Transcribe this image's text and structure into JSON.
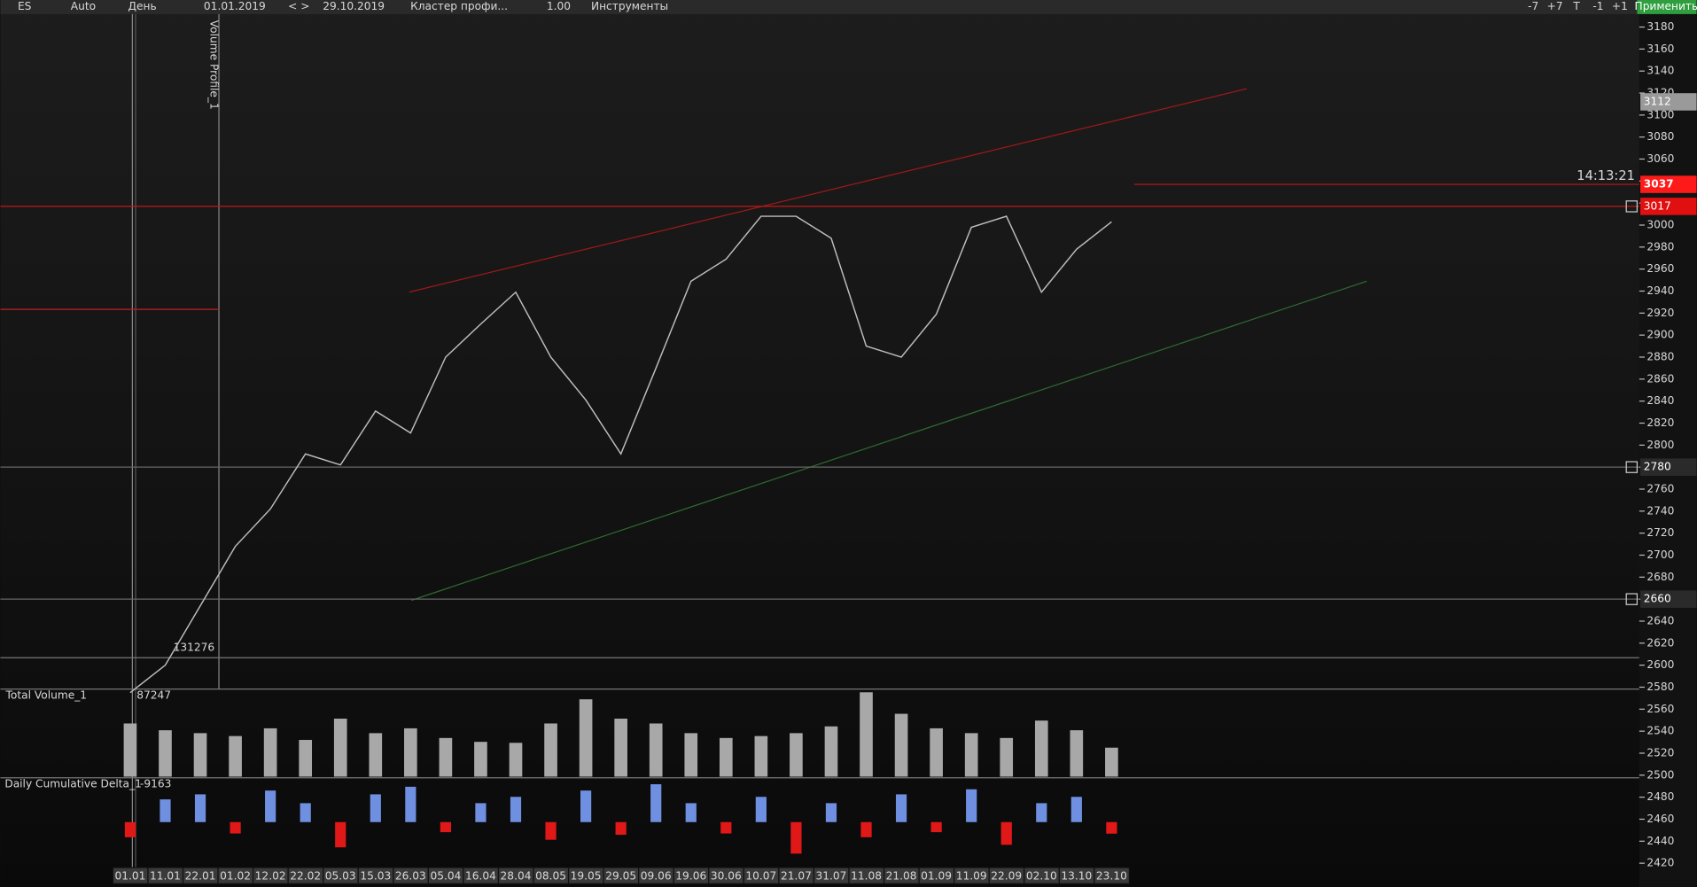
{
  "toolbar": {
    "symbol": "ES",
    "scale": "Auto",
    "period": "День",
    "date_from": "01.01.2019",
    "nav": "< >",
    "date_to": "29.10.2019",
    "cluster": "Кластер профи...",
    "multiplier": "1.00",
    "tools": "Инструменты",
    "buttons": [
      "-7",
      "+7",
      "T",
      "-1",
      "+1"
    ],
    "apply": "Применить"
  },
  "chart_data": {
    "type": "line",
    "categories": [
      "01.01",
      "11.01",
      "22.01",
      "01.02",
      "12.02",
      "22.02",
      "05.03",
      "15.03",
      "26.03",
      "05.04",
      "16.04",
      "28.04",
      "08.05",
      "19.05",
      "29.05",
      "09.06",
      "19.06",
      "30.06",
      "10.07",
      "21.07",
      "31.07",
      "11.08",
      "21.08",
      "01.09",
      "11.09",
      "22.09",
      "02.10",
      "13.10",
      "23.10"
    ],
    "values": [
      2575,
      2600,
      2654,
      2708,
      2742,
      2792,
      2782,
      2831,
      2811,
      2880,
      2910,
      2939,
      2880,
      2841,
      2792,
      2870,
      2949,
      2969,
      3008,
      3008,
      2988,
      2890,
      2880,
      2919,
      2998,
      3008,
      2939,
      2978,
      3003
    ],
    "color": "#bdbdbd",
    "ylim": [
      2420,
      3180
    ],
    "yticks": [
      2420,
      2440,
      2460,
      2480,
      2500,
      2520,
      2540,
      2560,
      2580,
      2600,
      2620,
      2640,
      2660,
      2680,
      2700,
      2720,
      2740,
      2760,
      2780,
      2800,
      2820,
      2840,
      2860,
      2880,
      2900,
      2920,
      2940,
      2960,
      2980,
      3000,
      3020,
      3040,
      3060,
      3080,
      3100,
      3120,
      3140,
      3160,
      3180
    ],
    "price_tags": [
      {
        "value": 3112,
        "color": "#9a9a9a"
      },
      {
        "value": 3037,
        "color": "#ff1a1a"
      },
      {
        "value": 3017,
        "color": "#e01010"
      },
      {
        "value": 2780,
        "color": "#2a2a2a"
      },
      {
        "value": 2660,
        "color": "#2a2a2a"
      }
    ],
    "time_label": "14:13:21",
    "profile_label": "Volume Profile_1",
    "profile_max": 131276,
    "volume": {
      "title": "Total Volume_1",
      "max": 87247,
      "color": "#a8a8a8",
      "values": [
        55000,
        48000,
        45000,
        42000,
        50000,
        38000,
        60000,
        45000,
        50000,
        40000,
        36000,
        35000,
        55000,
        80000,
        60000,
        55000,
        45000,
        40000,
        42000,
        45000,
        52000,
        87247,
        65000,
        50000,
        45000,
        40000,
        58000,
        48000,
        30000
      ]
    },
    "delta": {
      "title": "Daily Cumulative Delta_1",
      "last": -9163,
      "pos_color": "#6f8fe0",
      "neg_color": "#e01818",
      "values": [
        -12000,
        18000,
        22000,
        -9000,
        25000,
        15000,
        -20000,
        22000,
        28000,
        -8000,
        15000,
        20000,
        -14000,
        25000,
        -10000,
        30000,
        15000,
        -9000,
        20000,
        -25000,
        15000,
        -12000,
        22000,
        -8000,
        26000,
        -18000,
        15000,
        20000,
        -9163
      ]
    }
  }
}
